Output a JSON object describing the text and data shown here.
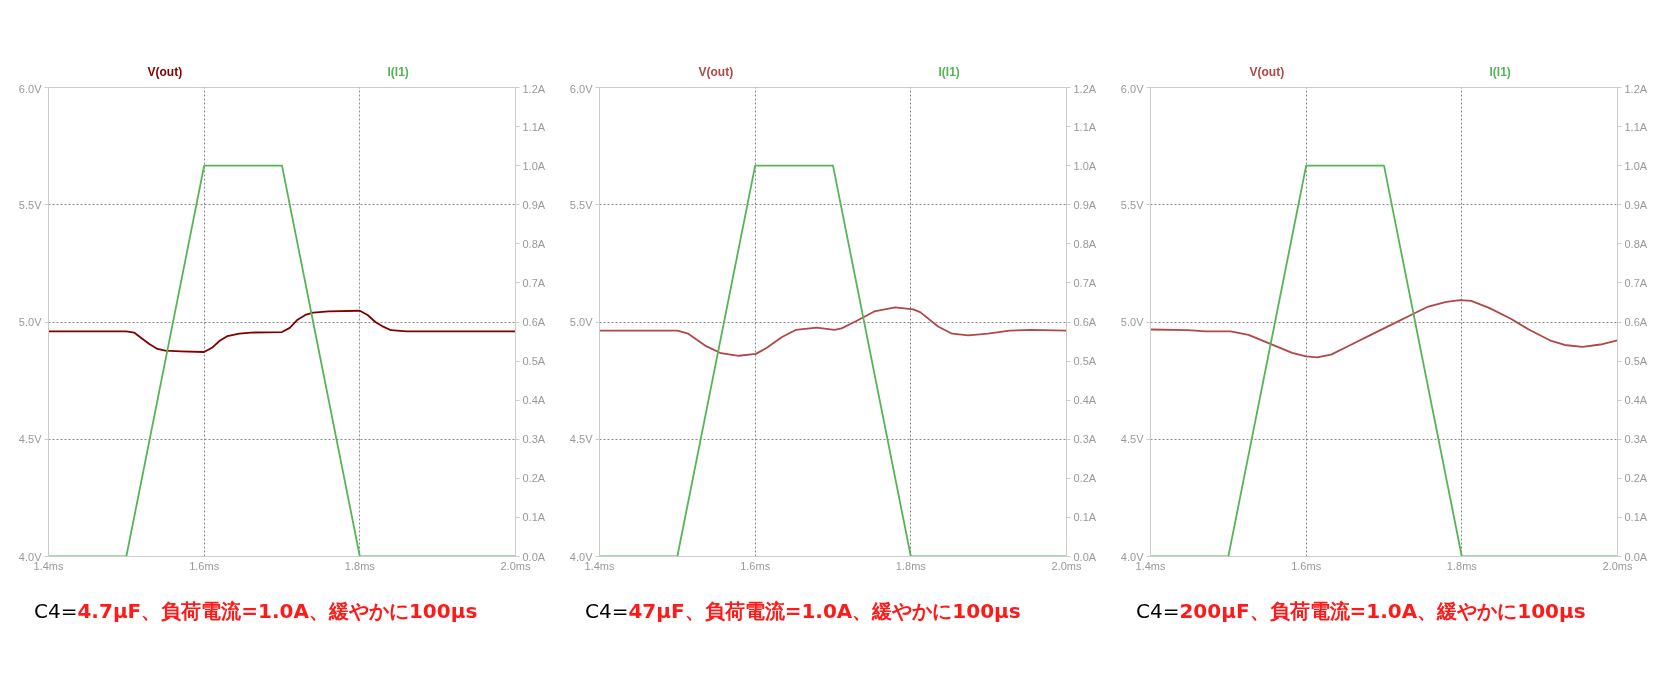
{
  "chart_data": [
    {
      "type": "line",
      "xlim": [
        1.4,
        2.0
      ],
      "xticks": [
        {
          "value": 1.4,
          "label": "1.4ms"
        },
        {
          "value": 1.6,
          "label": "1.6ms"
        },
        {
          "value": 1.8,
          "label": "1.8ms"
        },
        {
          "value": 2.0,
          "label": "2.0ms"
        }
      ],
      "ylim": [
        4.0,
        6.0
      ],
      "yticks": [
        {
          "value": 4.0,
          "label": "4.0V"
        },
        {
          "value": 4.5,
          "label": "4.5V"
        },
        {
          "value": 5.0,
          "label": "5.0V"
        },
        {
          "value": 5.5,
          "label": "5.5V"
        },
        {
          "value": 6.0,
          "label": "6.0V"
        }
      ],
      "y2lim": [
        0.0,
        1.2
      ],
      "y2ticks": [
        {
          "value": 0.0,
          "label": "0.0A"
        },
        {
          "value": 0.1,
          "label": "0.1A"
        },
        {
          "value": 0.2,
          "label": "0.2A"
        },
        {
          "value": 0.3,
          "label": "0.3A"
        },
        {
          "value": 0.4,
          "label": "0.4A"
        },
        {
          "value": 0.5,
          "label": "0.5A"
        },
        {
          "value": 0.6,
          "label": "0.6A"
        },
        {
          "value": 0.7,
          "label": "0.7A"
        },
        {
          "value": 0.8,
          "label": "0.8A"
        },
        {
          "value": 0.9,
          "label": "0.9A"
        },
        {
          "value": 1.0,
          "label": "1.0A"
        },
        {
          "value": 1.1,
          "label": "1.1A"
        },
        {
          "value": 1.2,
          "label": "1.2A"
        }
      ],
      "grid": true,
      "series": [
        {
          "name": "V(out)",
          "color": "#800000",
          "x": [
            1.4,
            1.5,
            1.51,
            1.52,
            1.53,
            1.54,
            1.55,
            1.57,
            1.6,
            1.61,
            1.62,
            1.63,
            1.645,
            1.66,
            1.7,
            1.71,
            1.72,
            1.73,
            1.74,
            1.76,
            1.8,
            1.81,
            1.82,
            1.83,
            1.84,
            1.86,
            2.0
          ],
          "values": [
            4.96,
            4.96,
            4.955,
            4.93,
            4.905,
            4.885,
            4.878,
            4.875,
            4.872,
            4.89,
            4.92,
            4.94,
            4.95,
            4.955,
            4.957,
            4.975,
            5.01,
            5.03,
            5.04,
            5.045,
            5.048,
            5.03,
            5.0,
            4.98,
            4.965,
            4.96,
            4.96
          ]
        },
        {
          "name": "I(I1)",
          "color": "#55b555",
          "axis": "y2",
          "x": [
            1.4,
            1.5,
            1.6,
            1.7,
            1.8,
            2.0
          ],
          "values": [
            0.0,
            0.0,
            1.0,
            1.0,
            0.0,
            0.0
          ]
        }
      ],
      "annotations": [
        "C4=",
        "4.7µF、負荷電流=1.0A、緩やかに100µs"
      ]
    },
    {
      "type": "line",
      "xlim": [
        1.4,
        2.0
      ],
      "xticks": [
        {
          "value": 1.4,
          "label": "1.4ms"
        },
        {
          "value": 1.6,
          "label": "1.6ms"
        },
        {
          "value": 1.8,
          "label": "1.8ms"
        },
        {
          "value": 2.0,
          "label": "2.0ms"
        }
      ],
      "ylim": [
        4.0,
        6.0
      ],
      "yticks": [
        {
          "value": 4.0,
          "label": "4.0V"
        },
        {
          "value": 4.5,
          "label": "4.5V"
        },
        {
          "value": 5.0,
          "label": "5.0V"
        },
        {
          "value": 5.5,
          "label": "5.5V"
        },
        {
          "value": 6.0,
          "label": "6.0V"
        }
      ],
      "y2lim": [
        0.0,
        1.2
      ],
      "y2ticks": [
        {
          "value": 0.0,
          "label": "0.0A"
        },
        {
          "value": 0.1,
          "label": "0.1A"
        },
        {
          "value": 0.2,
          "label": "0.2A"
        },
        {
          "value": 0.3,
          "label": "0.3A"
        },
        {
          "value": 0.4,
          "label": "0.4A"
        },
        {
          "value": 0.5,
          "label": "0.5A"
        },
        {
          "value": 0.6,
          "label": "0.6A"
        },
        {
          "value": 0.7,
          "label": "0.7A"
        },
        {
          "value": 0.8,
          "label": "0.8A"
        },
        {
          "value": 0.9,
          "label": "0.9A"
        },
        {
          "value": 1.0,
          "label": "1.0A"
        },
        {
          "value": 1.1,
          "label": "1.1A"
        },
        {
          "value": 1.2,
          "label": "1.2A"
        }
      ],
      "grid": true,
      "series": [
        {
          "name": "V(out)",
          "color": "#b04848",
          "x": [
            1.4,
            1.5,
            1.514,
            1.537,
            1.556,
            1.579,
            1.601,
            1.615,
            1.634,
            1.652,
            1.679,
            1.702,
            1.711,
            1.73,
            1.753,
            1.78,
            1.803,
            1.812,
            1.835,
            1.853,
            1.874,
            1.899,
            1.927,
            1.954,
            2.0
          ],
          "values": [
            4.963,
            4.963,
            4.95,
            4.897,
            4.867,
            4.856,
            4.864,
            4.89,
            4.935,
            4.966,
            4.976,
            4.966,
            4.973,
            5.004,
            5.045,
            5.062,
            5.054,
            5.042,
            4.981,
            4.95,
            4.943,
            4.95,
            4.963,
            4.966,
            4.963
          ]
        },
        {
          "name": "I(I1)",
          "color": "#55b555",
          "axis": "y2",
          "x": [
            1.4,
            1.5,
            1.6,
            1.7,
            1.8,
            2.0
          ],
          "values": [
            0.0,
            0.0,
            1.0,
            1.0,
            0.0,
            0.0
          ]
        }
      ],
      "annotations": [
        "C4=",
        "47µF、負荷電流=1.0A、緩やかに100µs"
      ]
    },
    {
      "type": "line",
      "xlim": [
        1.4,
        2.0
      ],
      "xticks": [
        {
          "value": 1.4,
          "label": "1.4ms"
        },
        {
          "value": 1.6,
          "label": "1.6ms"
        },
        {
          "value": 1.8,
          "label": "1.8ms"
        },
        {
          "value": 2.0,
          "label": "2.0ms"
        }
      ],
      "ylim": [
        4.0,
        6.0
      ],
      "yticks": [
        {
          "value": 4.0,
          "label": "4.0V"
        },
        {
          "value": 4.5,
          "label": "4.5V"
        },
        {
          "value": 5.0,
          "label": "5.0V"
        },
        {
          "value": 5.5,
          "label": "5.5V"
        },
        {
          "value": 6.0,
          "label": "6.0V"
        }
      ],
      "y2lim": [
        0.0,
        1.2
      ],
      "y2ticks": [
        {
          "value": 0.0,
          "label": "0.0A"
        },
        {
          "value": 0.1,
          "label": "0.1A"
        },
        {
          "value": 0.2,
          "label": "0.2A"
        },
        {
          "value": 0.3,
          "label": "0.3A"
        },
        {
          "value": 0.4,
          "label": "0.4A"
        },
        {
          "value": 0.5,
          "label": "0.5A"
        },
        {
          "value": 0.6,
          "label": "0.6A"
        },
        {
          "value": 0.7,
          "label": "0.7A"
        },
        {
          "value": 0.8,
          "label": "0.8A"
        },
        {
          "value": 0.9,
          "label": "0.9A"
        },
        {
          "value": 1.0,
          "label": "1.0A"
        },
        {
          "value": 1.1,
          "label": "1.1A"
        },
        {
          "value": 1.2,
          "label": "1.2A"
        }
      ],
      "grid": true,
      "series": [
        {
          "name": "V(out)",
          "color": "#b04848",
          "x": [
            1.4,
            1.448,
            1.471,
            1.503,
            1.526,
            1.554,
            1.582,
            1.6,
            1.614,
            1.632,
            1.655,
            1.683,
            1.711,
            1.734,
            1.757,
            1.78,
            1.798,
            1.812,
            1.835,
            1.863,
            1.886,
            1.913,
            1.932,
            1.955,
            1.978,
            2.0
          ],
          "values": [
            4.968,
            4.965,
            4.96,
            4.96,
            4.945,
            4.907,
            4.868,
            4.853,
            4.849,
            4.861,
            4.899,
            4.945,
            4.991,
            5.029,
            5.066,
            5.086,
            5.093,
            5.09,
            5.06,
            5.014,
            4.968,
            4.922,
            4.902,
            4.894,
            4.904,
            4.922
          ]
        },
        {
          "name": "I(I1)",
          "color": "#55b555",
          "axis": "y2",
          "x": [
            1.4,
            1.5,
            1.6,
            1.7,
            1.8,
            2.0
          ],
          "values": [
            0.0,
            0.0,
            1.0,
            1.0,
            0.0,
            0.0
          ]
        }
      ],
      "annotations": [
        "C4=",
        "200µF、負荷電流=1.0A、緩やかに100µs"
      ]
    }
  ]
}
